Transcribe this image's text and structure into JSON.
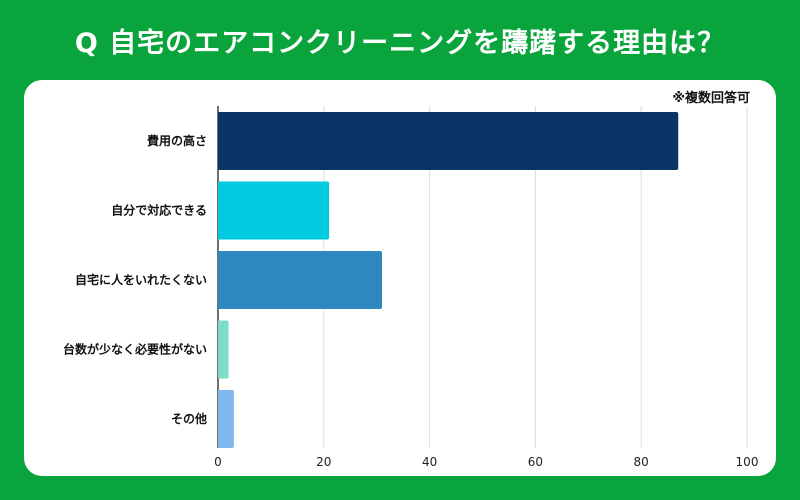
{
  "title": "Q 自宅のエアコンクリーニングを躊躇する理由は？",
  "note": "※複数回答可",
  "chart_data": {
    "type": "bar",
    "orientation": "horizontal",
    "categories": [
      "費用の高さ",
      "自分で対応できる",
      "自宅に人をいれたくない",
      "台数が少なく必要性がない",
      "その他"
    ],
    "values": [
      87,
      21,
      31,
      2,
      3
    ],
    "colors": [
      "#0b3566",
      "#00cbe0",
      "#2f88bd",
      "#7fdcc6",
      "#7fb8ec"
    ],
    "xlim": [
      0,
      100
    ],
    "xticks": [
      "0",
      "20",
      "40",
      "60",
      "80",
      "100"
    ],
    "xlabel": "",
    "ylabel": "",
    "grid": true
  }
}
